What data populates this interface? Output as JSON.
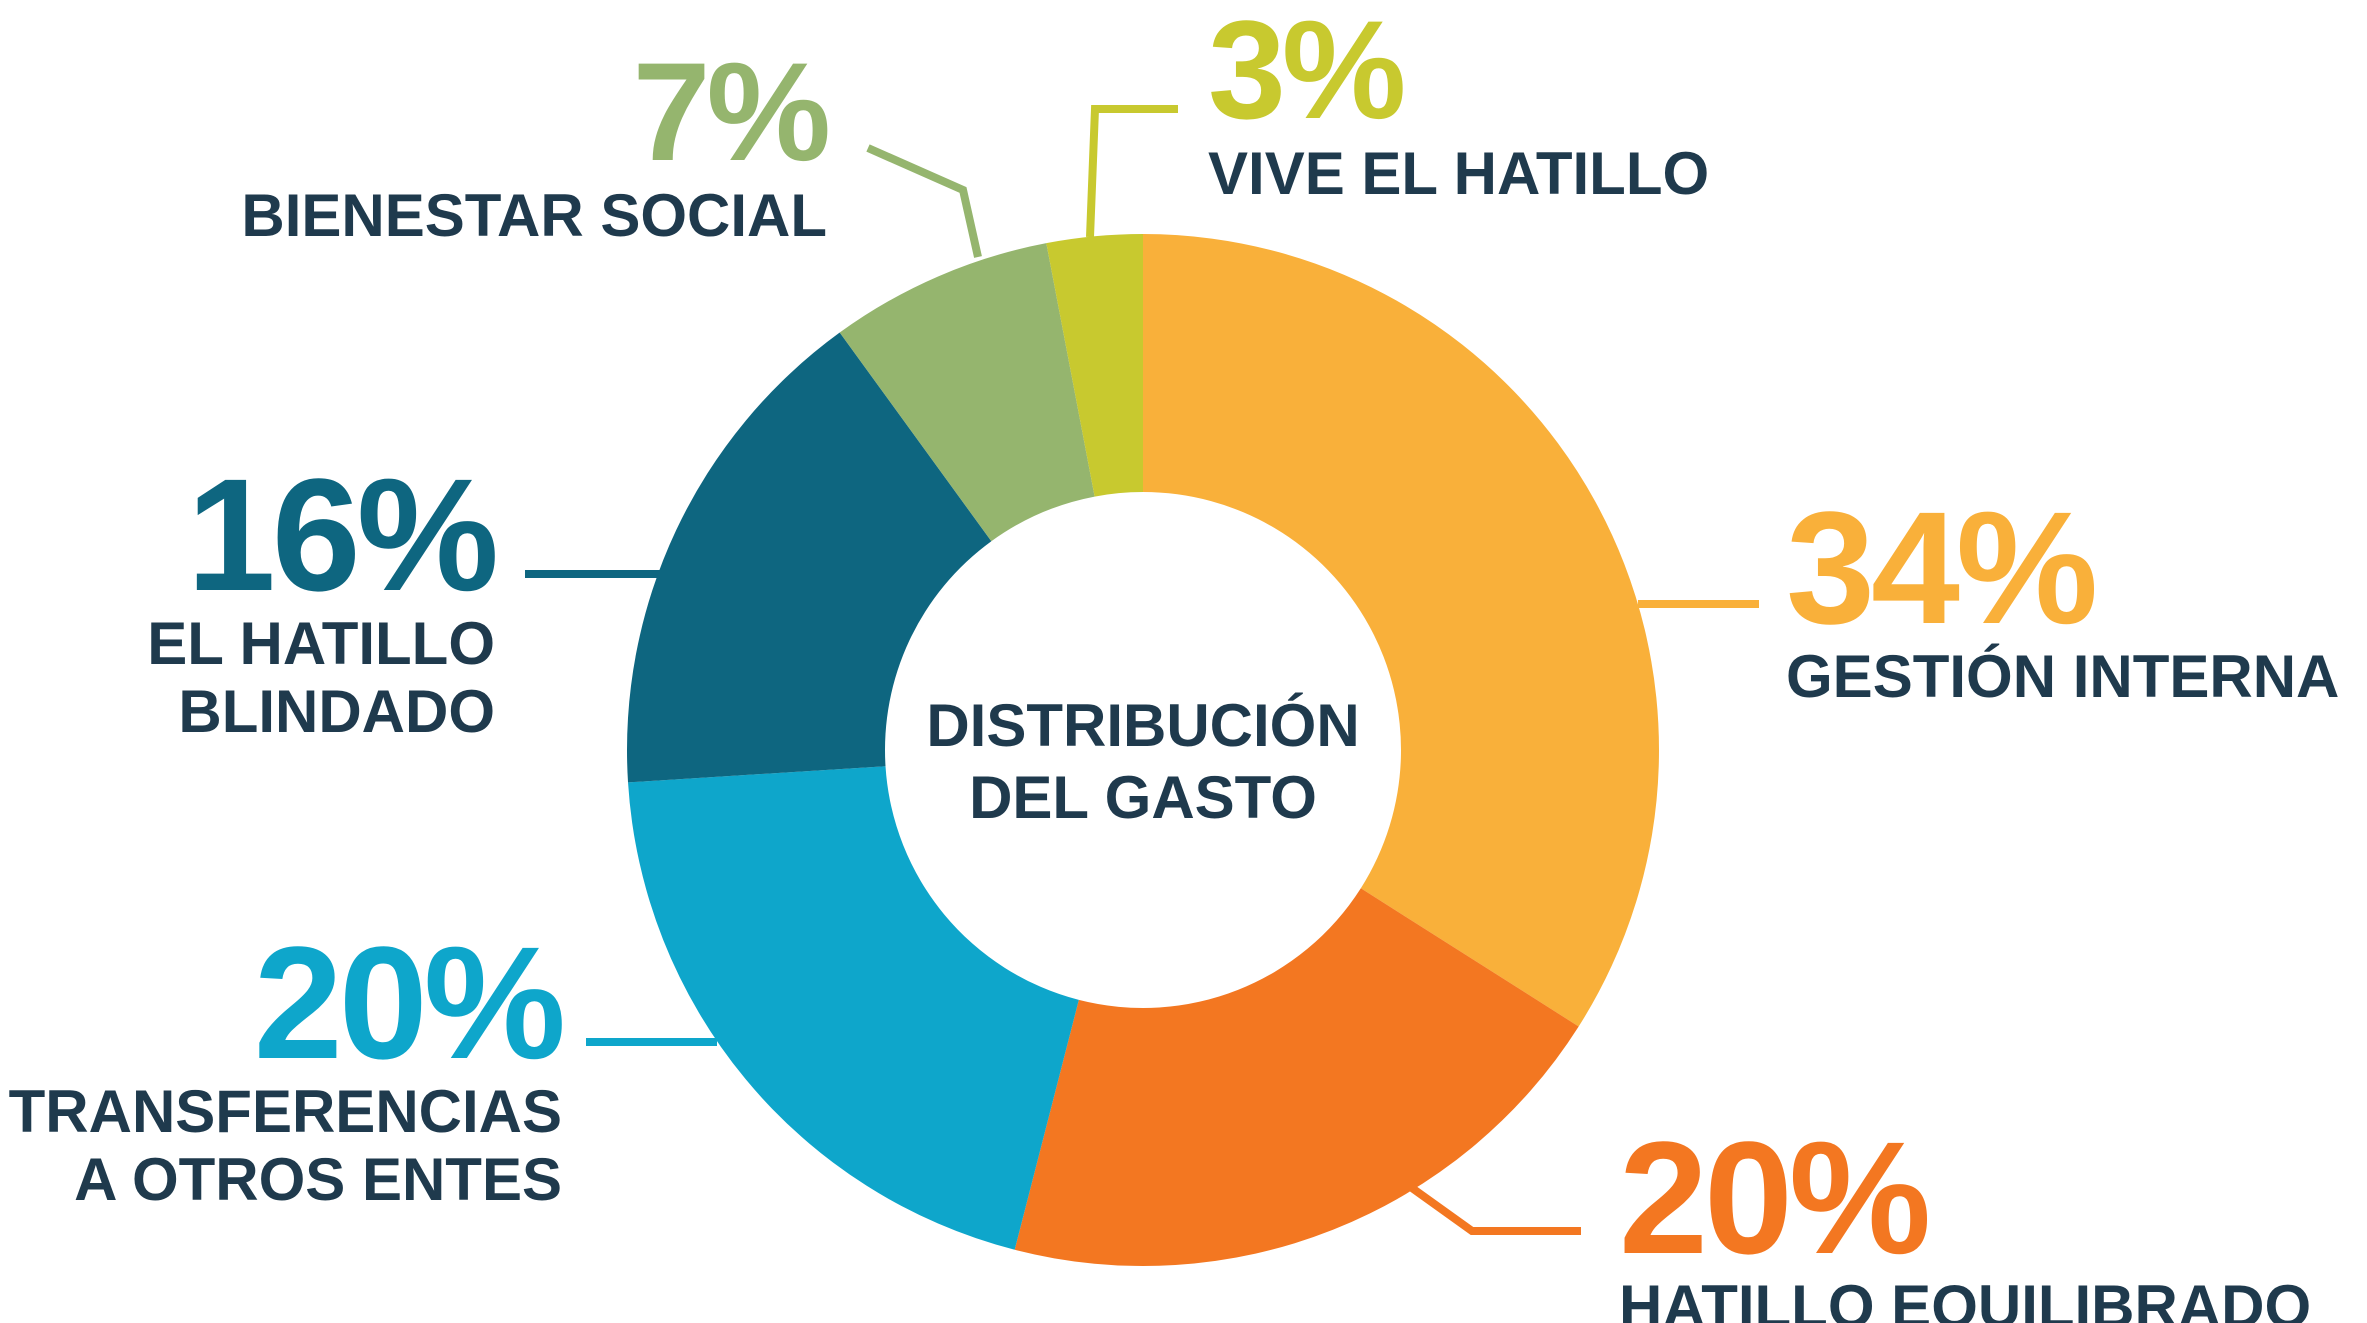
{
  "chart_data": {
    "type": "donut",
    "title": "DISTRIBUCIÓN DEL GASTO",
    "categories": [
      "GESTIÓN INTERNA",
      "HATILLO EQUILIBRADO",
      "TRANSFERENCIAS A OTROS ENTES",
      "EL HATILLO BLINDADO",
      "BIENESTAR SOCIAL",
      "VIVE EL HATILLO"
    ],
    "values": [
      34,
      20,
      20,
      16,
      7,
      3
    ],
    "value_labels": [
      "34%",
      "20%",
      "20%",
      "16%",
      "7%",
      "3%"
    ],
    "colors": [
      "#f9b03a",
      "#f37721",
      "#0ea6cb",
      "#0e6680",
      "#95b56e",
      "#c8c92f"
    ]
  }
}
